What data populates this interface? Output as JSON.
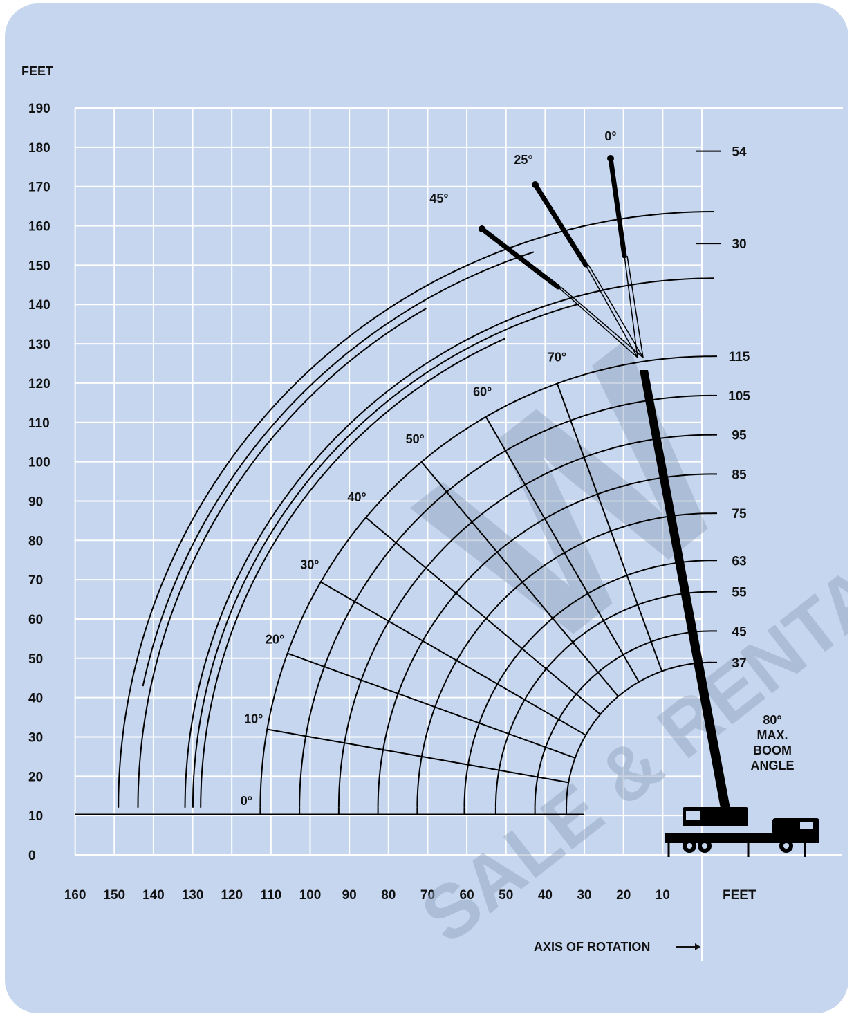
{
  "colors": {
    "panel_background": "#c5d6ee",
    "grid_lines": "#ffffff",
    "curves": "#000000",
    "watermark": "#8fa3bd"
  },
  "y_axis": {
    "unit_label": "FEET",
    "ticks": [
      "0",
      "10",
      "20",
      "30",
      "40",
      "50",
      "60",
      "70",
      "80",
      "90",
      "100",
      "110",
      "120",
      "130",
      "140",
      "150",
      "160",
      "170",
      "180",
      "190"
    ]
  },
  "x_axis": {
    "unit_label": "FEET",
    "ticks": [
      "160",
      "150",
      "140",
      "130",
      "120",
      "110",
      "100",
      "90",
      "80",
      "70",
      "60",
      "50",
      "40",
      "30",
      "20",
      "10"
    ],
    "direction": "radius decreases toward axis of rotation (right)"
  },
  "axis_of_rotation_label": "AXIS OF ROTATION",
  "boom_radii": [
    {
      "label": "115",
      "radius": 115
    },
    {
      "label": "105",
      "radius": 105
    },
    {
      "label": "95",
      "radius": 95
    },
    {
      "label": "85",
      "radius": 85
    },
    {
      "label": "75",
      "radius": 75
    },
    {
      "label": "63",
      "radius": 63
    },
    {
      "label": "55",
      "radius": 55
    },
    {
      "label": "45",
      "radius": 45
    },
    {
      "label": "37",
      "radius": 37
    }
  ],
  "boom_angles": [
    {
      "label": "0°",
      "angle": 0
    },
    {
      "label": "10°",
      "angle": 10
    },
    {
      "label": "20°",
      "angle": 20
    },
    {
      "label": "30°",
      "angle": 30
    },
    {
      "label": "40°",
      "angle": 40
    },
    {
      "label": "50°",
      "angle": 50
    },
    {
      "label": "60°",
      "angle": 60
    },
    {
      "label": "70°",
      "angle": 70
    }
  ],
  "jib_lengths": [
    {
      "label": "54",
      "feet": 54
    },
    {
      "label": "30",
      "feet": 30
    }
  ],
  "jib_offsets": [
    {
      "label": "0°",
      "angle": 0
    },
    {
      "label": "25°",
      "angle": 25
    },
    {
      "label": "45°",
      "angle": 45
    }
  ],
  "max_boom_angle": {
    "line1": "80°",
    "line2": "MAX.",
    "line3": "BOOM",
    "line4": "ANGLE"
  },
  "watermark": {
    "line1": "W",
    "line2": "SALE & RENTAL"
  }
}
